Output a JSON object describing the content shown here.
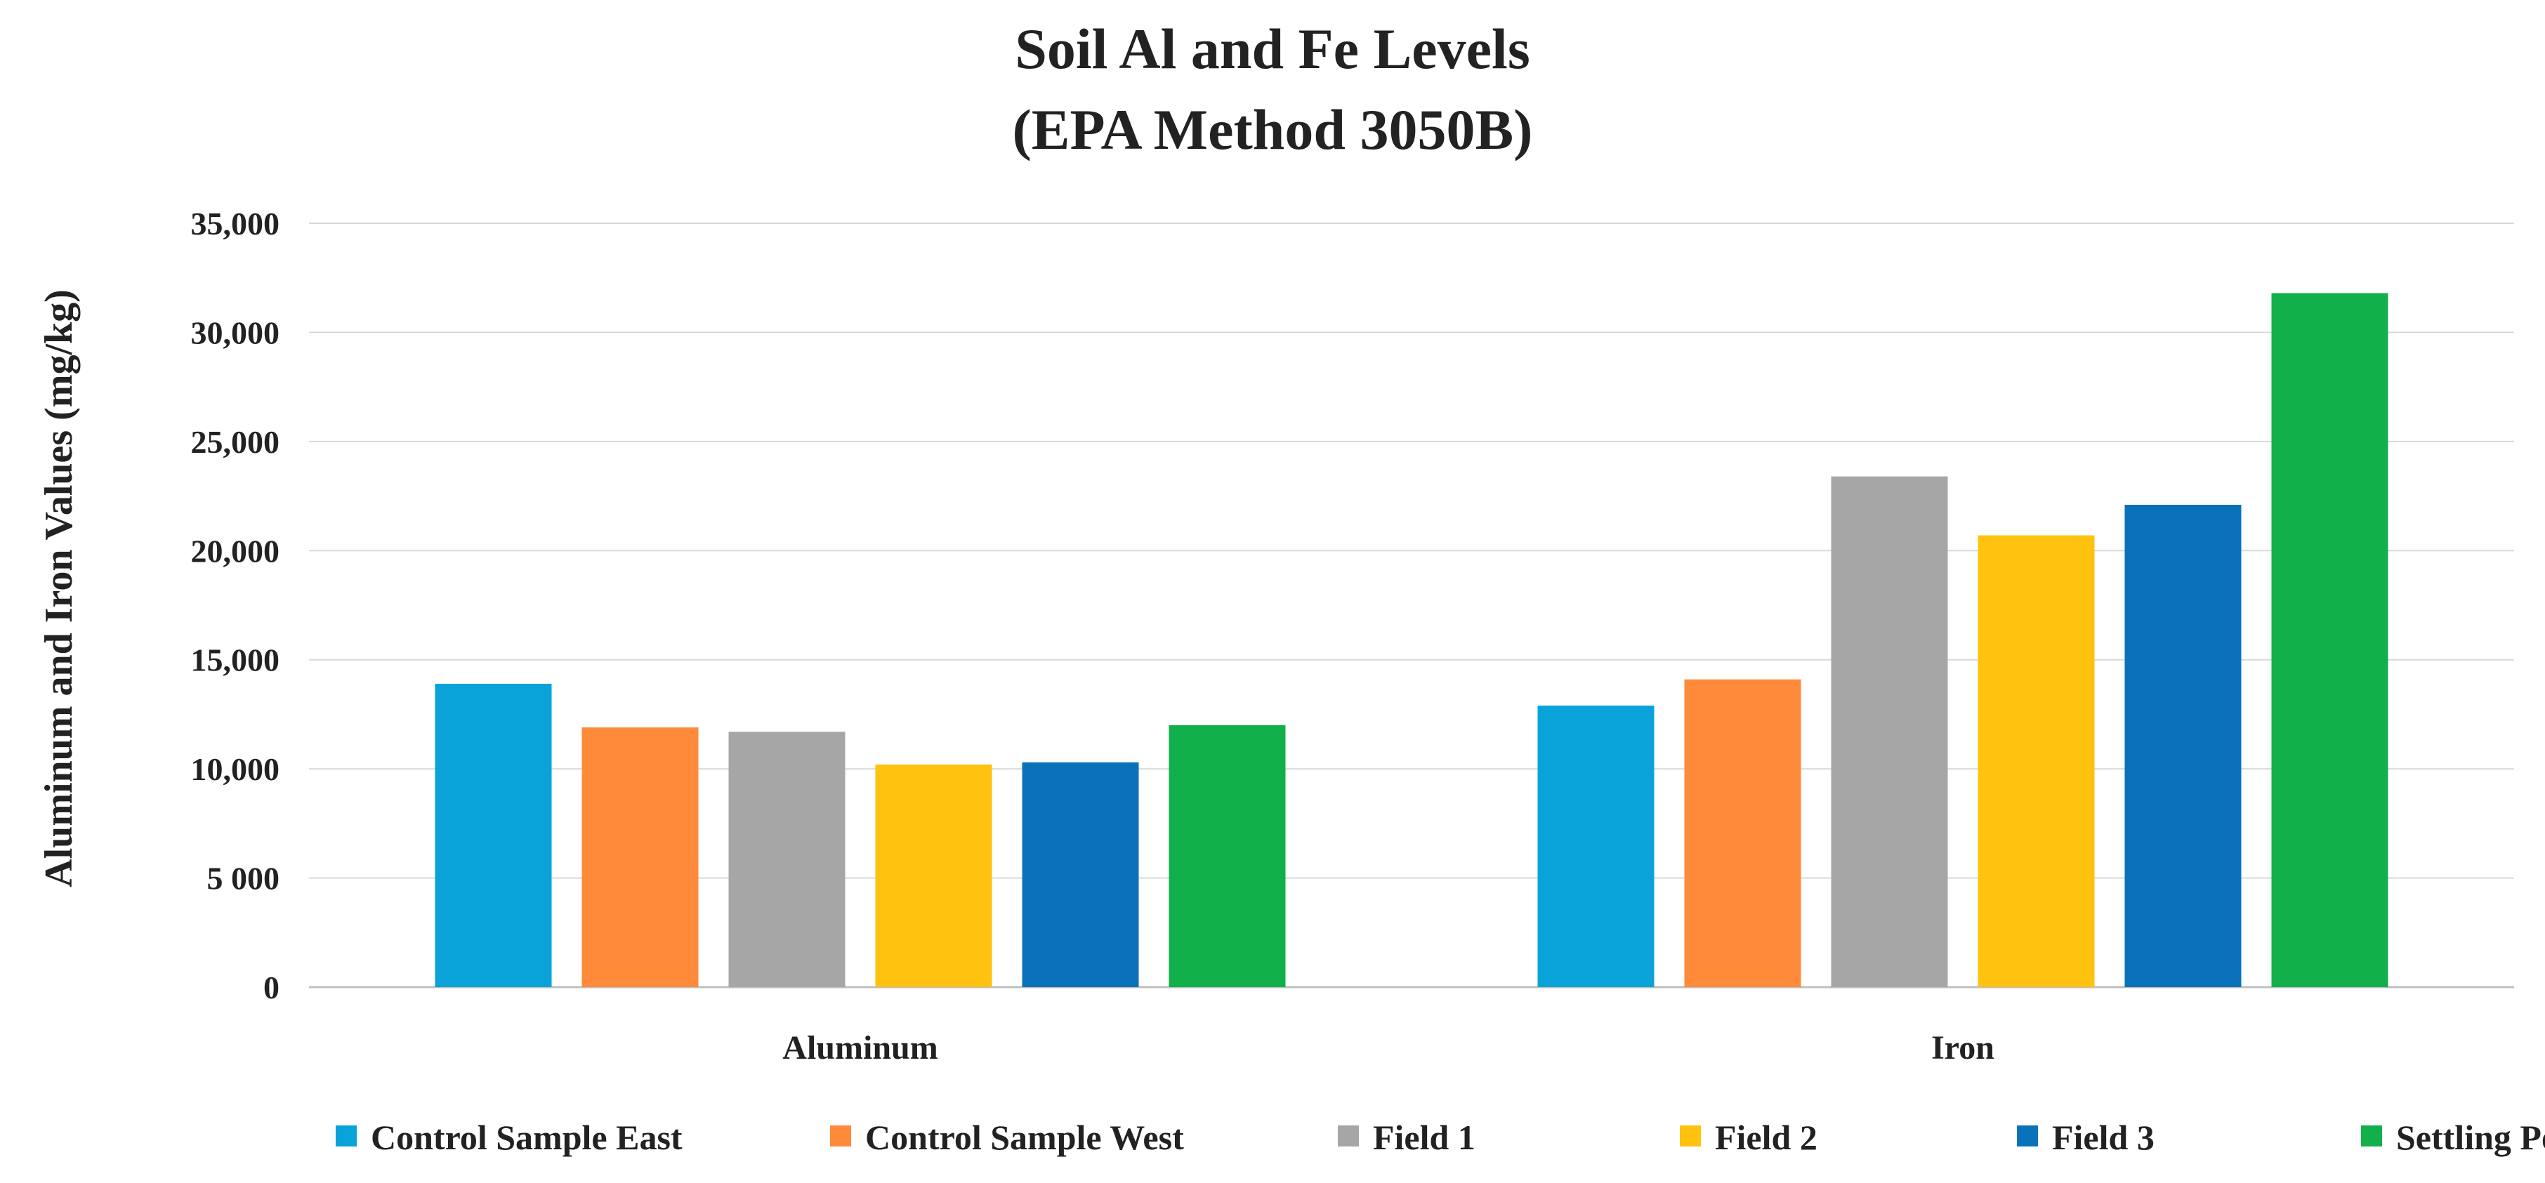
{
  "chart_data": {
    "type": "bar",
    "title": [
      "Soil Al and Fe Levels",
      "(EPA Method 3050B)"
    ],
    "ylabel": "Aluminum and Iron Values (mg/kg)",
    "xlabel": "",
    "categories": [
      "Aluminum",
      "Iron"
    ],
    "ylim": [
      0,
      35000
    ],
    "yticks": [
      0,
      5000,
      10000,
      15000,
      20000,
      25000,
      30000,
      35000
    ],
    "ytick_labels": [
      "0",
      "5 000",
      "10,000",
      "15,000",
      "20,000",
      "25,000",
      "30,000",
      "35,000"
    ],
    "grid": true,
    "legend_position": "bottom",
    "series": [
      {
        "name": "Control Sample East",
        "color": "#0aa3d9",
        "values": [
          13900,
          12900
        ]
      },
      {
        "name": "Control Sample West",
        "color": "#ff8a3a",
        "values": [
          11900,
          14100
        ]
      },
      {
        "name": "Field 1",
        "color": "#a6a6a6",
        "values": [
          11700,
          23400
        ]
      },
      {
        "name": "Field 2",
        "color": "#ffc20e",
        "values": [
          10200,
          20700
        ]
      },
      {
        "name": "Field 3",
        "color": "#0a72bb",
        "values": [
          10300,
          22100
        ]
      },
      {
        "name": "Settling Pond",
        "color": "#12b04a",
        "values": [
          12000,
          31800
        ]
      }
    ]
  }
}
